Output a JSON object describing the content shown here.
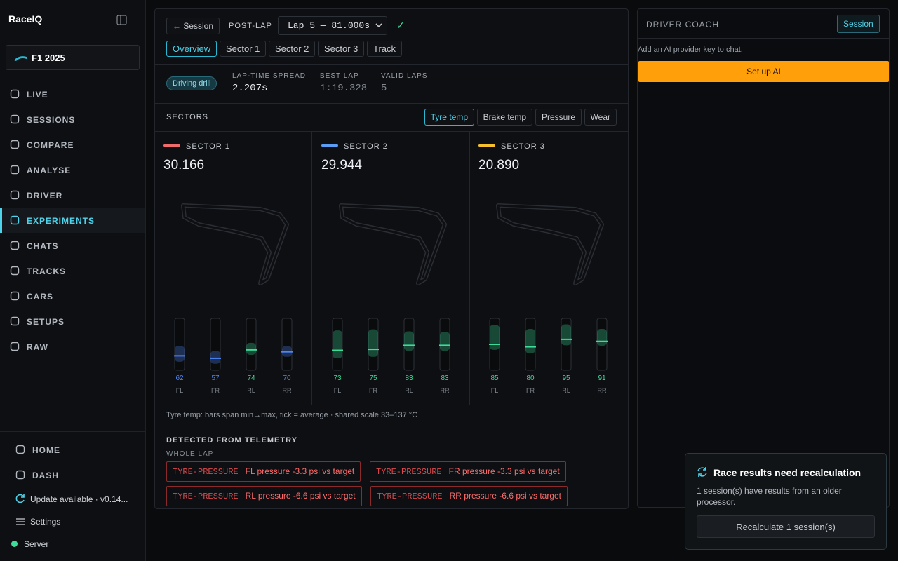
{
  "sidebar": {
    "brand": "RaceIQ",
    "game": "F1 2025",
    "nav": [
      {
        "label": "LIVE"
      },
      {
        "label": "SESSIONS"
      },
      {
        "label": "COMPARE"
      },
      {
        "label": "ANALYSE"
      },
      {
        "label": "DRIVER"
      },
      {
        "label": "EXPERIMENTS",
        "active": true
      },
      {
        "label": "CHATS"
      },
      {
        "label": "TRACKS"
      },
      {
        "label": "CARS"
      },
      {
        "label": "SETUPS"
      },
      {
        "label": "RAW"
      }
    ],
    "footer": [
      {
        "label": "HOME"
      },
      {
        "label": "DASH"
      }
    ],
    "update": "Update available · v0.14...",
    "settings": "Settings",
    "server": "Server"
  },
  "toolbar": {
    "back": "← Session",
    "mode": "POST-LAP",
    "lap": "Lap 5 — 81.000s",
    "check": "✓",
    "tabs": [
      {
        "label": "Overview",
        "active": true
      },
      {
        "label": "Sector 1"
      },
      {
        "label": "Sector 2"
      },
      {
        "label": "Sector 3"
      },
      {
        "label": "Track"
      }
    ]
  },
  "summary": {
    "badge": "Driving drill",
    "stats": [
      {
        "label": "LAP-TIME SPREAD",
        "value": "2.207s"
      },
      {
        "label": "BEST LAP",
        "value": "1:19.328",
        "muted": true
      },
      {
        "label": "VALID LAPS",
        "value": "5",
        "muted": true
      }
    ]
  },
  "sectors": {
    "title": "SECTORS",
    "modes": [
      {
        "label": "Tyre temp",
        "active": true
      },
      {
        "label": "Brake temp"
      },
      {
        "label": "Pressure"
      },
      {
        "label": "Wear"
      }
    ],
    "cards": [
      {
        "name": "SECTOR 1",
        "color": "#f26b6b",
        "time": "30.166",
        "tyres": [
          {
            "pos": "FL",
            "value": 62,
            "min": 50,
            "max": 82,
            "color": "#4f86f7"
          },
          {
            "pos": "FR",
            "value": 57,
            "min": 46,
            "max": 72,
            "color": "#4f86f7"
          },
          {
            "pos": "RL",
            "value": 74,
            "min": 64,
            "max": 88,
            "color": "#3ddc97"
          },
          {
            "pos": "RR",
            "value": 70,
            "min": 60,
            "max": 82,
            "color": "#4f86f7"
          }
        ]
      },
      {
        "name": "SECTOR 2",
        "color": "#5b9cf5",
        "time": "29.944",
        "tyres": [
          {
            "pos": "FL",
            "value": 73,
            "min": 57,
            "max": 113,
            "color": "#3ddc97"
          },
          {
            "pos": "FR",
            "value": 75,
            "min": 60,
            "max": 115,
            "color": "#3ddc97"
          },
          {
            "pos": "RL",
            "value": 83,
            "min": 72,
            "max": 111,
            "color": "#3ddc97"
          },
          {
            "pos": "RR",
            "value": 83,
            "min": 72,
            "max": 110,
            "color": "#3ddc97"
          }
        ]
      },
      {
        "name": "SECTOR 3",
        "color": "#f5c02b",
        "time": "20.890",
        "tyres": [
          {
            "pos": "FL",
            "value": 85,
            "min": 74,
            "max": 124,
            "color": "#3ddc97"
          },
          {
            "pos": "FR",
            "value": 80,
            "min": 67,
            "max": 116,
            "color": "#3ddc97"
          },
          {
            "pos": "RL",
            "value": 95,
            "min": 83,
            "max": 125,
            "color": "#3ddc97"
          },
          {
            "pos": "RR",
            "value": 91,
            "min": 82,
            "max": 116,
            "color": "#3ddc97"
          }
        ]
      }
    ]
  },
  "note": {
    "text": "Tyre temp: bars span min→max, tick = average · shared scale",
    "scale": [
      33,
      137
    ],
    "sep": "–",
    "unit": "°C"
  },
  "detected": {
    "title": "DETECTED FROM TELEMETRY",
    "scope": "WHOLE LAP",
    "issues": [
      {
        "tag": "TYRE-PRESSURE",
        "text": "FL pressure -3.3 psi vs target"
      },
      {
        "tag": "TYRE-PRESSURE",
        "text": "FR pressure -3.3 psi vs target"
      },
      {
        "tag": "TYRE-PRESSURE",
        "text": "RL pressure -6.6 psi vs target"
      },
      {
        "tag": "TYRE-PRESSURE",
        "text": "RR pressure -6.6 psi vs target"
      }
    ]
  },
  "coach": {
    "title": "DRIVER COACH",
    "scope": "Session",
    "hint": "Add an AI provider key to chat.",
    "setup": "Set up AI"
  },
  "toast": {
    "title": "Race results need recalculation",
    "body": "1 session(s) have results from an older processor.",
    "action": "Recalculate 1 session(s)"
  }
}
